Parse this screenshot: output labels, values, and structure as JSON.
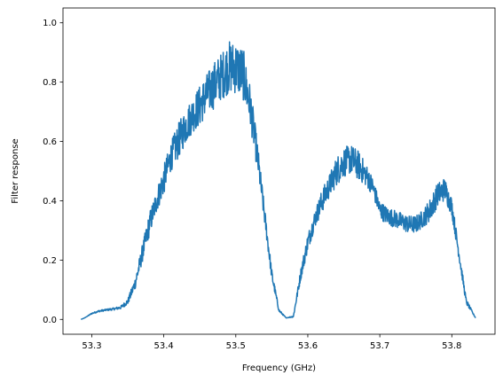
{
  "chart_data": {
    "type": "line",
    "xlabel": "Frequency (GHz)",
    "ylabel": "Filter response",
    "xlim": [
      53.26,
      53.86
    ],
    "ylim": [
      -0.05,
      1.05
    ],
    "x_ticks": [
      "53.3",
      "53.4",
      "53.5",
      "53.6",
      "53.7",
      "53.8"
    ],
    "x_tick_values": [
      53.3,
      53.4,
      53.5,
      53.6,
      53.7,
      53.8
    ],
    "y_ticks": [
      "0.0",
      "0.2",
      "0.4",
      "0.6",
      "0.8",
      "1.0"
    ],
    "y_tick_values": [
      0.0,
      0.2,
      0.4,
      0.6,
      0.8,
      1.0
    ],
    "grid": false,
    "series": [
      {
        "color": "#1f77b4",
        "x": [
          53.285,
          53.29,
          53.3,
          53.31,
          53.32,
          53.33,
          53.34,
          53.35,
          53.36,
          53.37,
          53.38,
          53.39,
          53.4,
          53.41,
          53.42,
          53.43,
          53.44,
          53.45,
          53.46,
          53.47,
          53.48,
          53.49,
          53.5,
          53.51,
          53.52,
          53.53,
          53.54,
          53.55,
          53.56,
          53.57,
          53.58,
          53.59,
          53.6,
          53.61,
          53.62,
          53.63,
          53.64,
          53.65,
          53.66,
          53.67,
          53.68,
          53.69,
          53.7,
          53.71,
          53.72,
          53.73,
          53.74,
          53.75,
          53.76,
          53.77,
          53.78,
          53.79,
          53.8,
          53.81,
          53.82,
          53.833
        ],
        "y": [
          0.0,
          0.005,
          0.02,
          0.028,
          0.032,
          0.035,
          0.04,
          0.06,
          0.12,
          0.22,
          0.32,
          0.4,
          0.47,
          0.55,
          0.6,
          0.65,
          0.69,
          0.72,
          0.76,
          0.79,
          0.82,
          0.85,
          0.85,
          0.83,
          0.72,
          0.55,
          0.35,
          0.15,
          0.03,
          0.005,
          0.01,
          0.15,
          0.26,
          0.34,
          0.4,
          0.45,
          0.5,
          0.53,
          0.54,
          0.52,
          0.49,
          0.45,
          0.37,
          0.35,
          0.34,
          0.33,
          0.32,
          0.32,
          0.34,
          0.37,
          0.42,
          0.44,
          0.38,
          0.22,
          0.06,
          0.005
        ],
        "noise_amplitude": [
          0.0,
          0.0,
          0.002,
          0.003,
          0.003,
          0.004,
          0.005,
          0.01,
          0.02,
          0.03,
          0.04,
          0.04,
          0.05,
          0.05,
          0.06,
          0.06,
          0.06,
          0.07,
          0.07,
          0.08,
          0.08,
          0.09,
          0.09,
          0.09,
          0.07,
          0.05,
          0.03,
          0.02,
          0.005,
          0.0,
          0.003,
          0.02,
          0.03,
          0.03,
          0.04,
          0.04,
          0.05,
          0.05,
          0.05,
          0.05,
          0.04,
          0.03,
          0.03,
          0.03,
          0.03,
          0.03,
          0.03,
          0.03,
          0.03,
          0.04,
          0.04,
          0.04,
          0.03,
          0.02,
          0.01,
          0.0
        ]
      }
    ]
  }
}
